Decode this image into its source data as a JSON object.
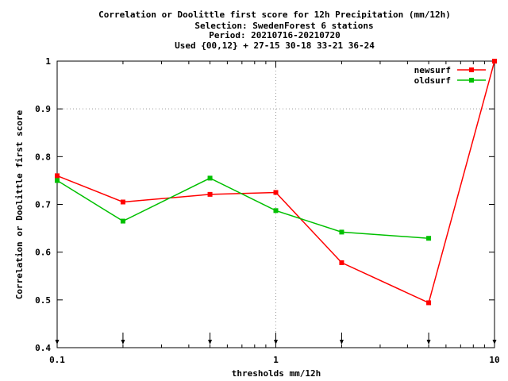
{
  "chart_data": {
    "type": "line",
    "title_lines": [
      "Correlation or Doolittle first score  for 12h Precipitation (mm/12h)",
      "Selection: SwedenForest      6 stations",
      "Period: 20210716-20210720",
      "Used {00,12} + 27-15 30-18 33-21 36-24"
    ],
    "xlabel": "thresholds mm/12h",
    "ylabel": "Correlation or Doolittle first score",
    "x_scale": "log",
    "xlim": [
      0.1,
      10
    ],
    "ylim": [
      0.4,
      1.0
    ],
    "x_ticks": [
      {
        "value": 0.1,
        "label": "0.1"
      },
      {
        "value": 1,
        "label": "1"
      },
      {
        "value": 10,
        "label": "10"
      }
    ],
    "y_ticks": [
      {
        "value": 0.4,
        "label": "0.4"
      },
      {
        "value": 0.5,
        "label": "0.5"
      },
      {
        "value": 0.6,
        "label": "0.6"
      },
      {
        "value": 0.7,
        "label": "0.7"
      },
      {
        "value": 0.8,
        "label": "0.8"
      },
      {
        "value": 0.9,
        "label": "0.9"
      },
      {
        "value": 1.0,
        "label": "1"
      }
    ],
    "grid": "dotted at x=1 and y=0.9",
    "legend_position": "top-right",
    "threshold_markers": [
      0.1,
      0.2,
      0.5,
      1,
      2,
      5,
      10
    ],
    "series": [
      {
        "name": "newsurf",
        "color": "#ff0000",
        "x": [
          0.1,
          0.2,
          0.5,
          1,
          2,
          5,
          10
        ],
        "y": [
          0.76,
          0.705,
          0.721,
          0.725,
          0.578,
          0.494,
          1.0
        ]
      },
      {
        "name": "oldsurf",
        "color": "#00c000",
        "x": [
          0.1,
          0.2,
          0.5,
          1,
          2,
          5
        ],
        "y": [
          0.75,
          0.665,
          0.755,
          0.687,
          0.642,
          0.629
        ]
      }
    ]
  }
}
